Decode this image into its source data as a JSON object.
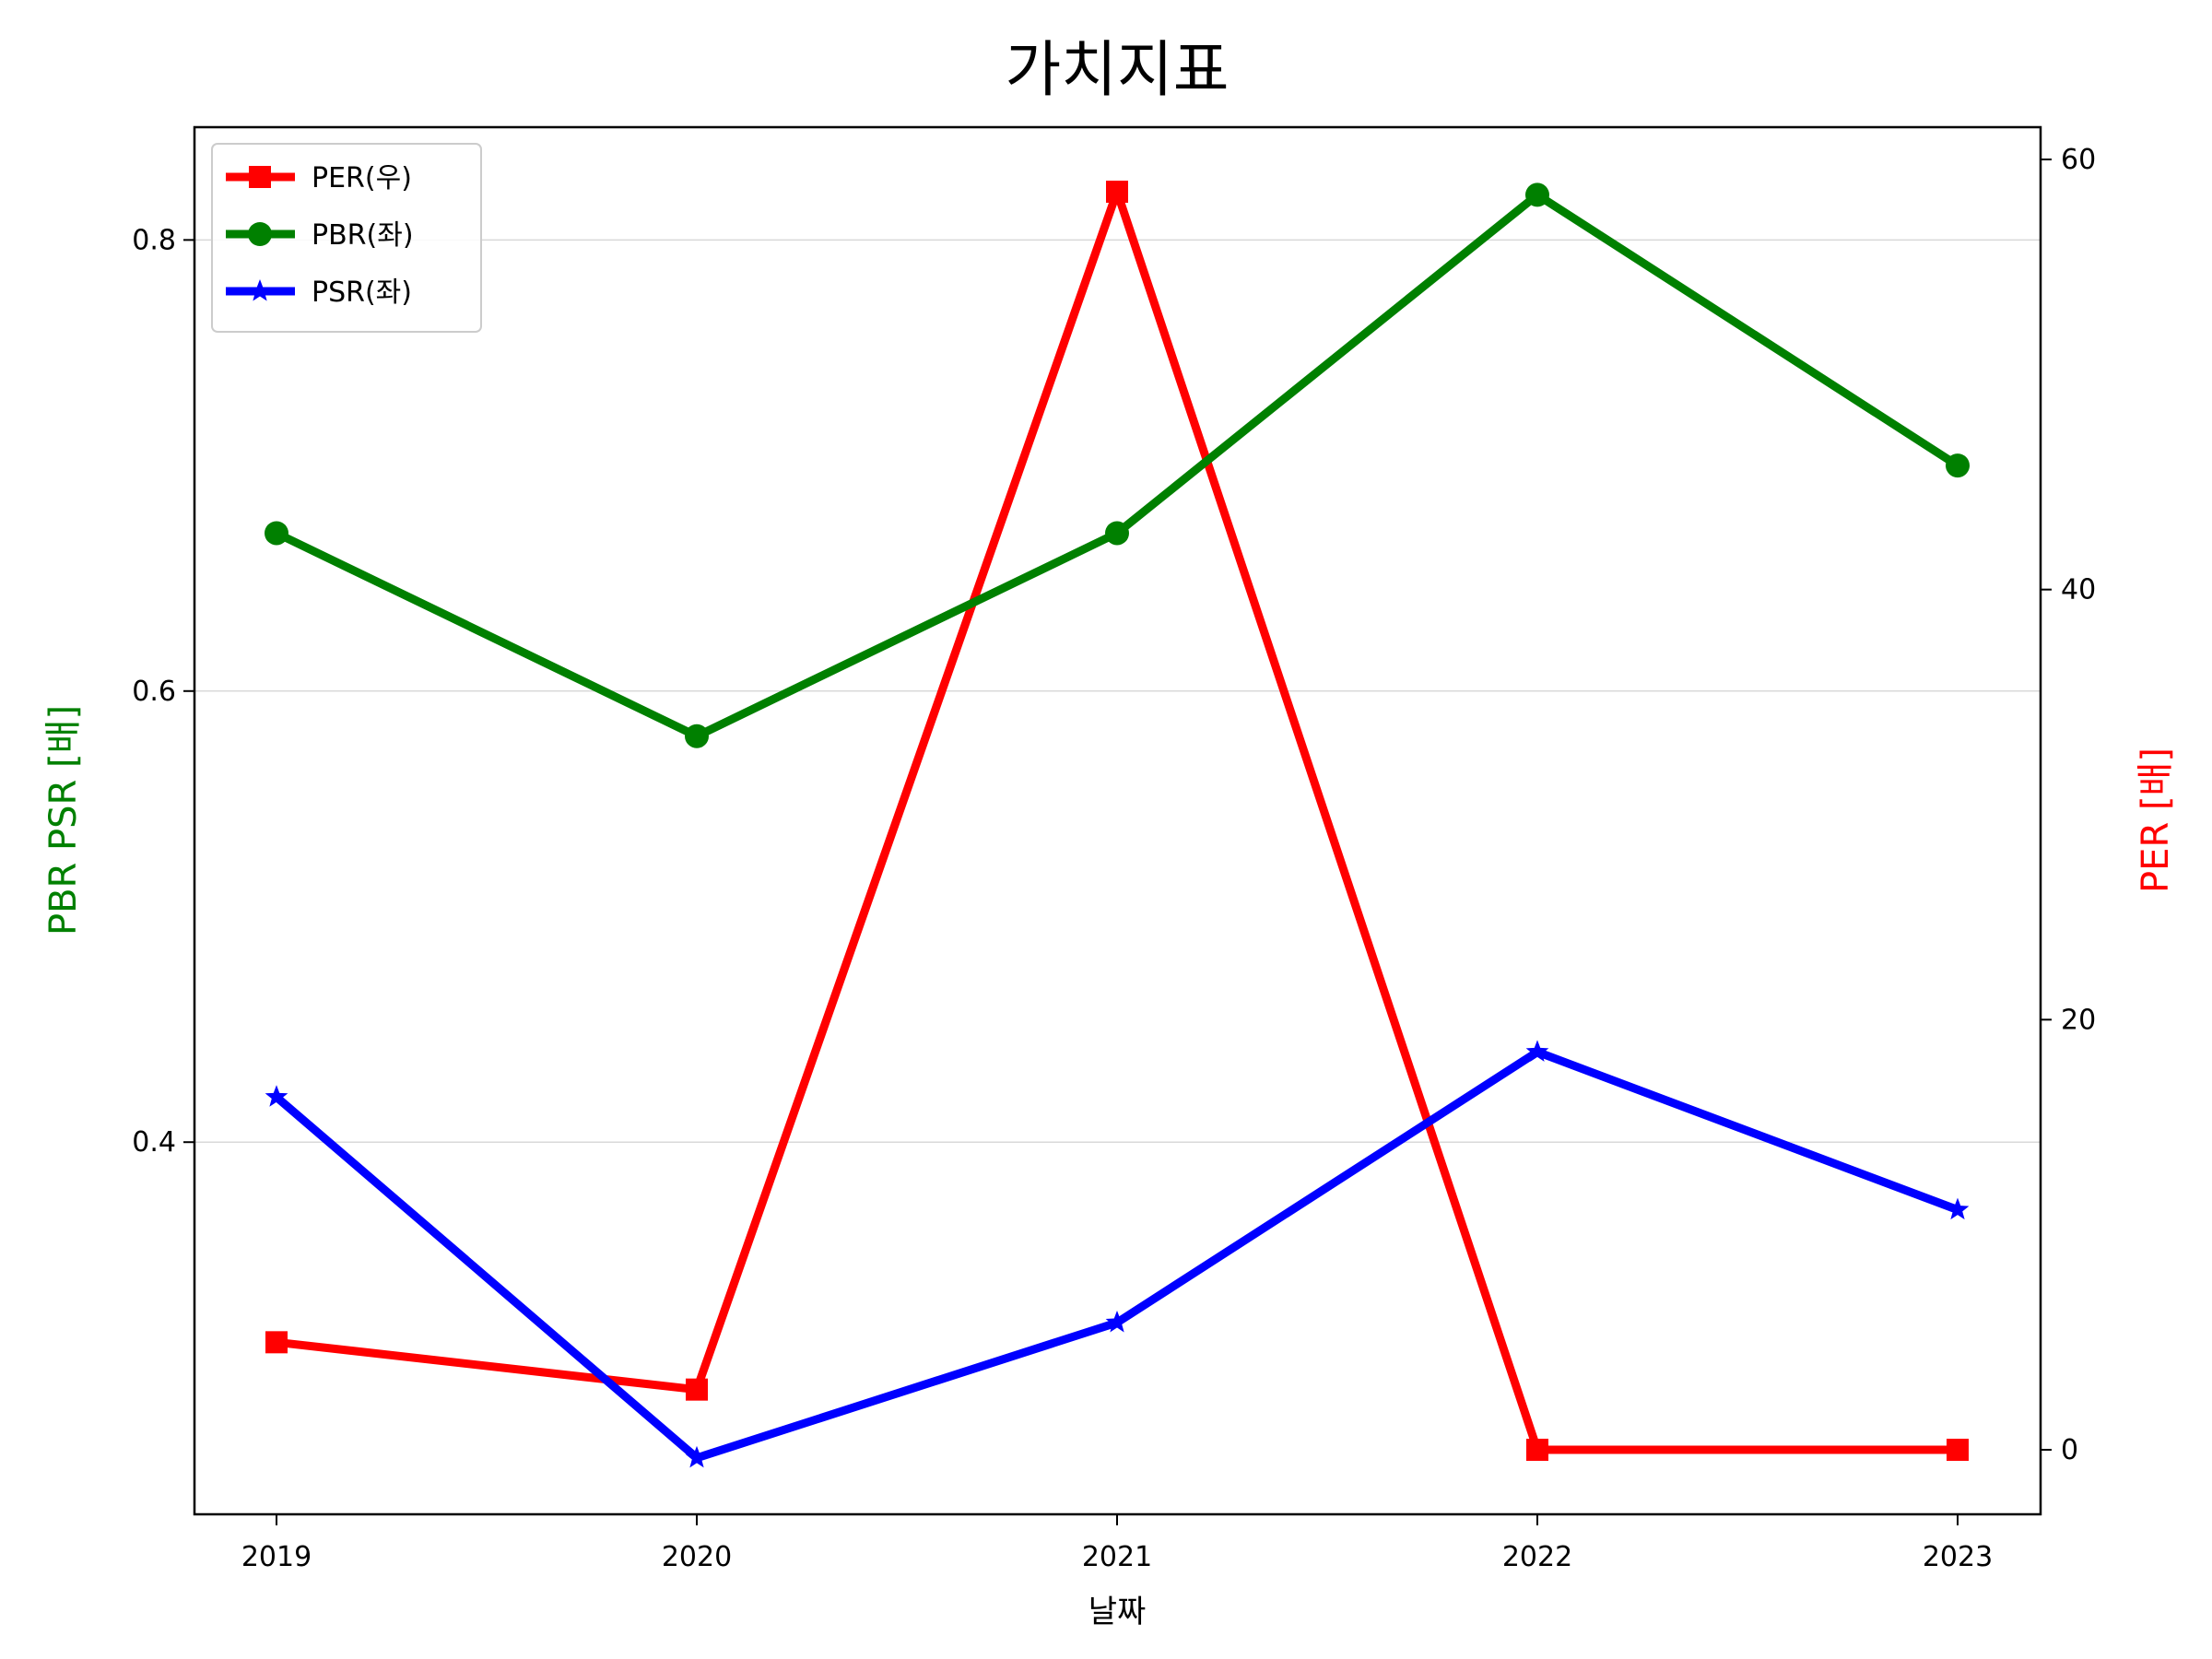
{
  "chart_data": {
    "type": "line",
    "title": "가치지표",
    "xlabel": "날짜",
    "ylabel_left": "PBR PSR [배]",
    "ylabel_right": "PER [배]",
    "categories": [
      "2019",
      "2020",
      "2021",
      "2022",
      "2023"
    ],
    "left_axis": {
      "range": [
        0.235,
        0.85
      ],
      "ticks": [
        0.4,
        0.6,
        0.8
      ],
      "tick_labels": [
        "0.4",
        "0.6",
        "0.8"
      ]
    },
    "right_axis": {
      "range": [
        -3,
        61.5
      ],
      "ticks": [
        0,
        20,
        40,
        60
      ],
      "tick_labels": [
        "0",
        "20",
        "40",
        "60"
      ]
    },
    "grid": "horizontal",
    "legend_position": "top-left",
    "series": [
      {
        "name": "PER(우)",
        "axis": "right",
        "color": "#ff0000",
        "marker": "square",
        "values": [
          5,
          2.8,
          58.5,
          0,
          0
        ]
      },
      {
        "name": "PBR(좌)",
        "axis": "left",
        "color": "#008000",
        "marker": "circle",
        "values": [
          0.67,
          0.58,
          0.67,
          0.82,
          0.7
        ]
      },
      {
        "name": "PSR(좌)",
        "axis": "left",
        "color": "#0000ff",
        "marker": "star",
        "values": [
          0.42,
          0.26,
          0.32,
          0.44,
          0.37
        ]
      }
    ]
  }
}
